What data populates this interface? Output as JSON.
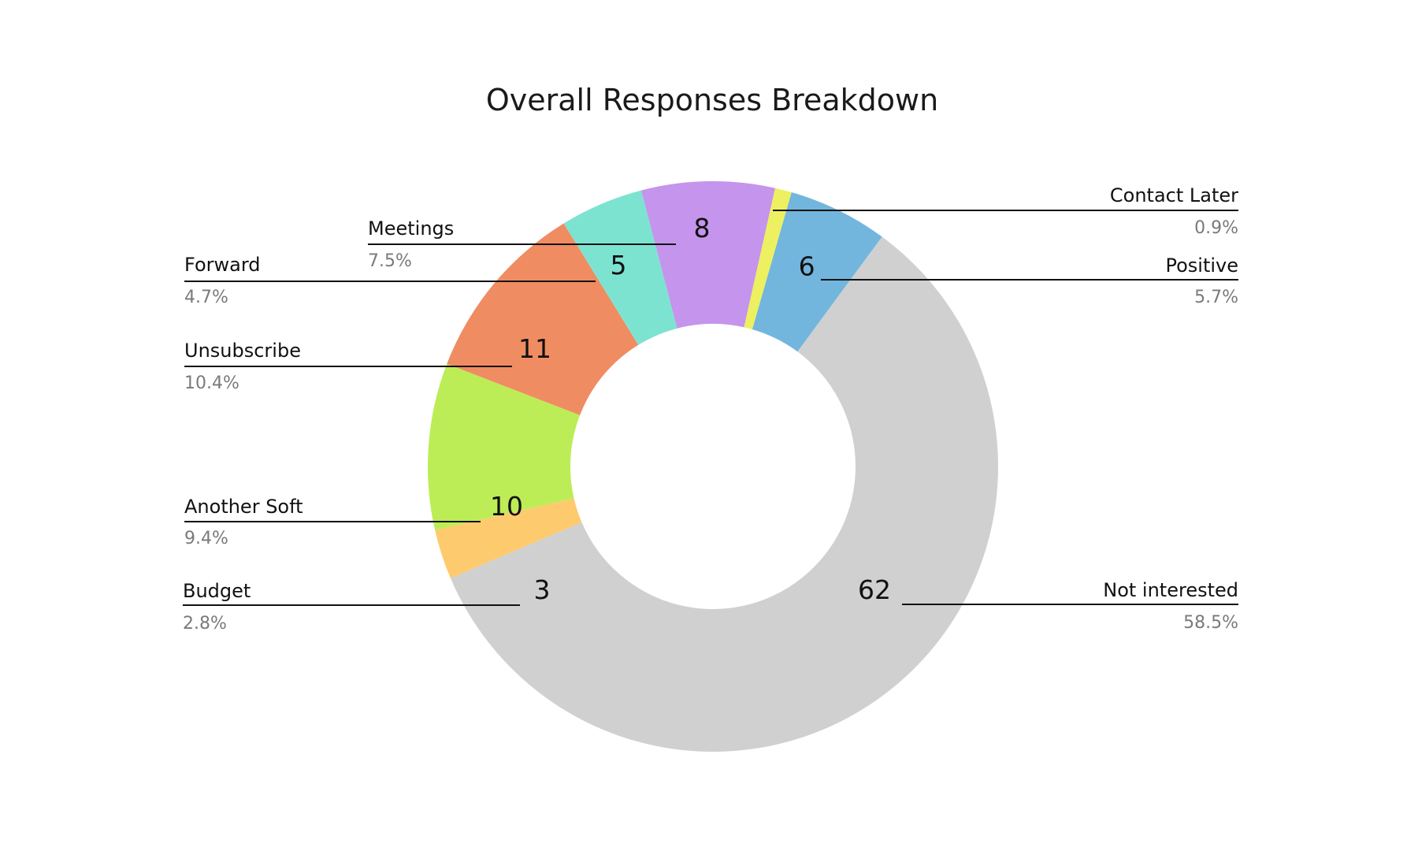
{
  "chart_data": {
    "type": "pie",
    "title": "Overall Responses Breakdown",
    "donut": true,
    "categories": [
      "Positive",
      "Not interested",
      "Budget",
      "Another Soft",
      "Unsubscribe",
      "Forward",
      "Meetings",
      "Contact Later"
    ],
    "values": [
      6,
      62,
      3,
      10,
      11,
      5,
      8,
      1
    ],
    "percent_labels": [
      "5.7%",
      "58.5%",
      "2.8%",
      "9.4%",
      "10.4%",
      "4.7%",
      "7.5%",
      "0.9%"
    ],
    "value_labels": [
      "6",
      "62",
      "3",
      "10",
      "11",
      "5",
      "8",
      ""
    ],
    "colors": [
      "#72b6dd",
      "#d0d0d0",
      "#fdcb6e",
      "#bced56",
      "#f08c62",
      "#7de3d1",
      "#c594ec",
      "#edf060"
    ]
  }
}
